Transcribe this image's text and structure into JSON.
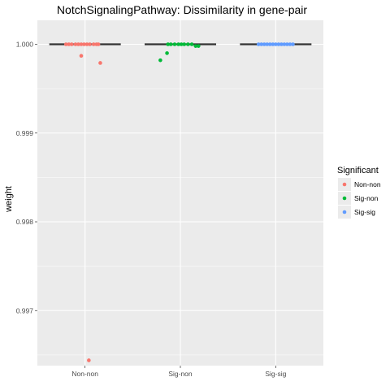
{
  "chart_data": {
    "type": "scatter",
    "subtype": "jitter-with-boxplot",
    "title": "NotchSignalingPathway: Dissimilarity in gene-pair",
    "xlabel": "",
    "ylabel": "weight",
    "categories": [
      "Non-non",
      "Sig-non",
      "Sig-sig"
    ],
    "ylim": [
      0.99638,
      1.00027
    ],
    "yticks": [
      0.997,
      0.998,
      0.999,
      1.0
    ],
    "ytick_labels": [
      "0.997",
      "0.998",
      "0.999",
      "1.000"
    ],
    "grid": true,
    "legend": {
      "title": "Significant",
      "placement": "right",
      "entries": [
        "Non-non",
        "Sig-non",
        "Sig-sig"
      ]
    },
    "colors": {
      "Non-non": "#F8766D",
      "Sig-non": "#00BA38",
      "Sig-sig": "#619CFF",
      "panel": "#EBEBEB",
      "median": "#333333"
    },
    "boxplots": [
      {
        "category": "Non-non",
        "median": 1.0,
        "q1": 1.0,
        "q3": 1.0
      },
      {
        "category": "Sig-non",
        "median": 1.0,
        "q1": 1.0,
        "q3": 1.0
      },
      {
        "category": "Sig-sig",
        "median": 1.0,
        "q1": 1.0,
        "q3": 1.0
      }
    ],
    "series": [
      {
        "name": "Non-non",
        "points": [
          {
            "x": -0.2,
            "y": 1.0
          },
          {
            "x": -0.17,
            "y": 1.0
          },
          {
            "x": -0.14,
            "y": 1.0
          },
          {
            "x": -0.1,
            "y": 1.0
          },
          {
            "x": -0.07,
            "y": 1.0
          },
          {
            "x": -0.04,
            "y": 1.0
          },
          {
            "x": -0.01,
            "y": 1.0
          },
          {
            "x": 0.02,
            "y": 1.0
          },
          {
            "x": 0.05,
            "y": 1.0
          },
          {
            "x": 0.09,
            "y": 1.0
          },
          {
            "x": 0.12,
            "y": 1.0
          },
          {
            "x": 0.14,
            "y": 1.0
          },
          {
            "x": -0.04,
            "y": 0.99987
          },
          {
            "x": 0.16,
            "y": 0.99979
          },
          {
            "x": 0.04,
            "y": 0.99644
          }
        ]
      },
      {
        "name": "Sig-non",
        "points": [
          {
            "x": -0.14,
            "y": 0.9999
          },
          {
            "x": -0.13,
            "y": 1.0
          },
          {
            "x": -0.1,
            "y": 1.0
          },
          {
            "x": -0.06,
            "y": 1.0
          },
          {
            "x": -0.02,
            "y": 1.0
          },
          {
            "x": 0.01,
            "y": 1.0
          },
          {
            "x": 0.04,
            "y": 1.0
          },
          {
            "x": 0.08,
            "y": 1.0
          },
          {
            "x": 0.12,
            "y": 1.0
          },
          {
            "x": 0.16,
            "y": 0.99998
          },
          {
            "x": 0.19,
            "y": 0.99998
          },
          {
            "x": -0.21,
            "y": 0.99982
          }
        ]
      },
      {
        "name": "Sig-sig",
        "points": [
          {
            "x": -0.18,
            "y": 1.0
          },
          {
            "x": -0.15,
            "y": 1.0
          },
          {
            "x": -0.12,
            "y": 1.0
          },
          {
            "x": -0.09,
            "y": 1.0
          },
          {
            "x": -0.06,
            "y": 1.0
          },
          {
            "x": -0.03,
            "y": 1.0
          },
          {
            "x": 0.0,
            "y": 1.0
          },
          {
            "x": 0.03,
            "y": 1.0
          },
          {
            "x": 0.06,
            "y": 1.0
          },
          {
            "x": 0.09,
            "y": 1.0
          },
          {
            "x": 0.12,
            "y": 1.0
          },
          {
            "x": 0.15,
            "y": 1.0
          },
          {
            "x": 0.18,
            "y": 1.0
          }
        ]
      }
    ]
  }
}
